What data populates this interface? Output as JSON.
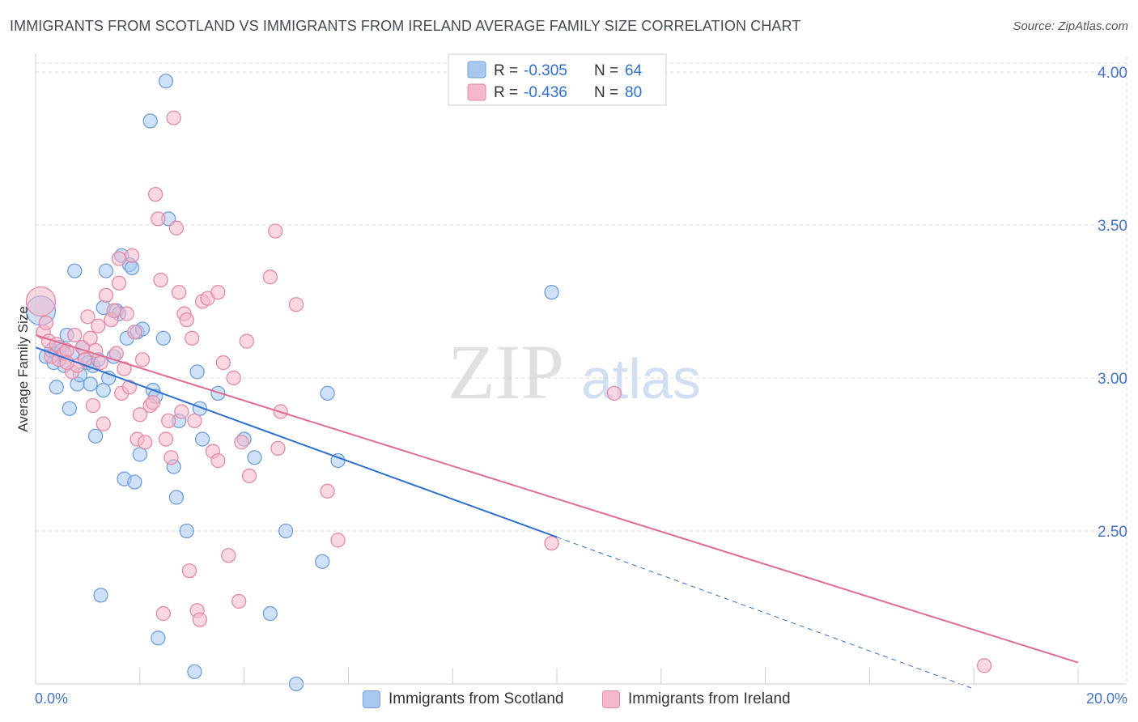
{
  "title": "IMMIGRANTS FROM SCOTLAND VS IMMIGRANTS FROM IRELAND AVERAGE FAMILY SIZE CORRELATION CHART",
  "source": "Source: ZipAtlas.com",
  "watermark": {
    "zip": "ZIP",
    "atlas": "atlas"
  },
  "colors": {
    "scotland_fill": "#a8c8f0",
    "scotland_stroke": "#6f9fdc",
    "scotland_line": "#2e6fd1",
    "ireland_fill": "#f5b8ca",
    "ireland_stroke": "#e48aa7",
    "ireland_line": "#e06b93",
    "axis_text": "#4472c4",
    "grid": "#d9d9d9"
  },
  "stats": [
    {
      "r_label": "R = ",
      "r_value": "-0.305",
      "n_label": "N = ",
      "n_value": "64"
    },
    {
      "r_label": "R = ",
      "r_value": "-0.436",
      "n_label": "N = ",
      "n_value": "80"
    }
  ],
  "legend": [
    "Immigrants from Scotland",
    "Immigrants from Ireland"
  ],
  "chart_data": {
    "type": "scatter",
    "title": "IMMIGRANTS FROM SCOTLAND VS IMMIGRANTS FROM IRELAND AVERAGE FAMILY SIZE CORRELATION CHART",
    "xlabel": "",
    "ylabel": "Average Family Size",
    "xlim": [
      0,
      20
    ],
    "ylim": [
      2.0,
      4.05
    ],
    "x_tick_labels": [
      "0.0%",
      "20.0%"
    ],
    "y_ticks": [
      2.5,
      3.0,
      3.5,
      4.0
    ],
    "y_tick_labels": [
      "2.50",
      "3.00",
      "3.50",
      "4.00"
    ],
    "grid": true,
    "legend_position": "bottom",
    "series": [
      {
        "name": "Immigrants from Scotland",
        "trend": {
          "x0": 0,
          "y0": 3.1,
          "x1": 10,
          "y1": 2.48,
          "dash_to_x": 18
        },
        "points": [
          [
            0.1,
            3.22
          ],
          [
            0.2,
            3.07
          ],
          [
            0.3,
            3.09
          ],
          [
            0.35,
            3.05
          ],
          [
            0.4,
            3.08
          ],
          [
            0.45,
            3.1
          ],
          [
            0.5,
            3.09
          ],
          [
            0.55,
            3.04
          ],
          [
            0.4,
            2.97
          ],
          [
            0.6,
            3.14
          ],
          [
            0.65,
            2.9
          ],
          [
            0.7,
            3.08
          ],
          [
            0.75,
            3.35
          ],
          [
            0.8,
            2.98
          ],
          [
            0.85,
            3.01
          ],
          [
            0.9,
            3.1
          ],
          [
            0.95,
            3.06
          ],
          [
            1.0,
            3.05
          ],
          [
            1.05,
            2.98
          ],
          [
            1.1,
            3.04
          ],
          [
            1.15,
            2.81
          ],
          [
            1.2,
            3.06
          ],
          [
            1.25,
            2.29
          ],
          [
            1.3,
            2.96
          ],
          [
            1.35,
            3.35
          ],
          [
            1.4,
            3.0
          ],
          [
            1.5,
            3.07
          ],
          [
            1.55,
            3.22
          ],
          [
            1.6,
            3.21
          ],
          [
            1.65,
            3.4
          ],
          [
            1.7,
            2.67
          ],
          [
            1.75,
            3.13
          ],
          [
            1.8,
            3.37
          ],
          [
            1.85,
            3.36
          ],
          [
            1.9,
            2.66
          ],
          [
            1.95,
            3.15
          ],
          [
            2.0,
            2.75
          ],
          [
            2.05,
            3.16
          ],
          [
            2.2,
            3.84
          ],
          [
            2.25,
            2.96
          ],
          [
            2.3,
            2.94
          ],
          [
            2.35,
            2.15
          ],
          [
            2.45,
            3.13
          ],
          [
            2.5,
            3.97
          ],
          [
            2.55,
            3.52
          ],
          [
            2.65,
            2.71
          ],
          [
            2.7,
            2.61
          ],
          [
            2.75,
            2.86
          ],
          [
            3.05,
            2.04
          ],
          [
            3.1,
            3.02
          ],
          [
            3.15,
            2.9
          ],
          [
            3.2,
            2.8
          ],
          [
            3.5,
            2.95
          ],
          [
            4.0,
            2.8
          ],
          [
            4.2,
            2.74
          ],
          [
            4.5,
            2.23
          ],
          [
            4.8,
            2.5
          ],
          [
            5.0,
            2.0
          ],
          [
            5.5,
            2.4
          ],
          [
            5.6,
            2.95
          ],
          [
            5.8,
            2.73
          ],
          [
            9.9,
            3.28
          ],
          [
            2.9,
            2.5
          ],
          [
            1.3,
            3.23
          ]
        ]
      },
      {
        "name": "Immigrants from Ireland",
        "trend": {
          "x0": 0,
          "y0": 3.14,
          "x1": 20,
          "y1": 2.07
        },
        "points": [
          [
            0.1,
            3.25
          ],
          [
            0.15,
            3.15
          ],
          [
            0.25,
            3.12
          ],
          [
            0.3,
            3.07
          ],
          [
            0.4,
            3.11
          ],
          [
            0.45,
            3.06
          ],
          [
            0.55,
            3.08
          ],
          [
            0.6,
            3.09
          ],
          [
            0.7,
            3.02
          ],
          [
            0.75,
            3.14
          ],
          [
            0.8,
            3.04
          ],
          [
            0.9,
            3.1
          ],
          [
            0.95,
            3.06
          ],
          [
            1.0,
            3.2
          ],
          [
            1.05,
            3.13
          ],
          [
            1.1,
            2.91
          ],
          [
            1.2,
            3.17
          ],
          [
            1.25,
            3.05
          ],
          [
            1.3,
            2.85
          ],
          [
            1.35,
            3.27
          ],
          [
            1.45,
            3.19
          ],
          [
            1.5,
            3.22
          ],
          [
            1.55,
            3.08
          ],
          [
            1.6,
            3.31
          ],
          [
            1.65,
            2.95
          ],
          [
            1.7,
            3.03
          ],
          [
            1.75,
            3.21
          ],
          [
            1.8,
            2.97
          ],
          [
            1.85,
            3.4
          ],
          [
            1.9,
            3.15
          ],
          [
            1.95,
            2.8
          ],
          [
            2.0,
            2.88
          ],
          [
            2.05,
            3.06
          ],
          [
            2.1,
            2.79
          ],
          [
            2.2,
            2.91
          ],
          [
            2.25,
            2.92
          ],
          [
            2.3,
            3.6
          ],
          [
            2.35,
            3.52
          ],
          [
            2.4,
            3.32
          ],
          [
            2.45,
            2.23
          ],
          [
            2.5,
            2.8
          ],
          [
            2.55,
            2.86
          ],
          [
            2.6,
            2.74
          ],
          [
            2.65,
            3.85
          ],
          [
            2.7,
            3.49
          ],
          [
            2.8,
            2.89
          ],
          [
            2.85,
            3.21
          ],
          [
            2.9,
            3.19
          ],
          [
            2.95,
            2.37
          ],
          [
            3.0,
            3.13
          ],
          [
            3.05,
            2.86
          ],
          [
            3.1,
            2.24
          ],
          [
            3.15,
            2.21
          ],
          [
            3.2,
            3.25
          ],
          [
            3.3,
            3.26
          ],
          [
            3.5,
            3.28
          ],
          [
            3.6,
            3.05
          ],
          [
            3.7,
            2.42
          ],
          [
            3.8,
            3.0
          ],
          [
            3.9,
            2.27
          ],
          [
            3.95,
            2.79
          ],
          [
            4.1,
            2.68
          ],
          [
            4.5,
            3.33
          ],
          [
            4.6,
            3.48
          ],
          [
            4.65,
            2.77
          ],
          [
            4.7,
            2.89
          ],
          [
            5.0,
            3.24
          ],
          [
            5.6,
            2.63
          ],
          [
            5.8,
            2.47
          ],
          [
            9.9,
            2.46
          ],
          [
            11.1,
            2.95
          ],
          [
            18.2,
            2.06
          ],
          [
            2.75,
            3.28
          ],
          [
            3.4,
            2.76
          ],
          [
            3.5,
            2.73
          ],
          [
            4.05,
            3.12
          ],
          [
            1.6,
            3.39
          ],
          [
            0.6,
            3.05
          ],
          [
            0.2,
            3.18
          ],
          [
            1.15,
            3.09
          ]
        ]
      }
    ]
  }
}
